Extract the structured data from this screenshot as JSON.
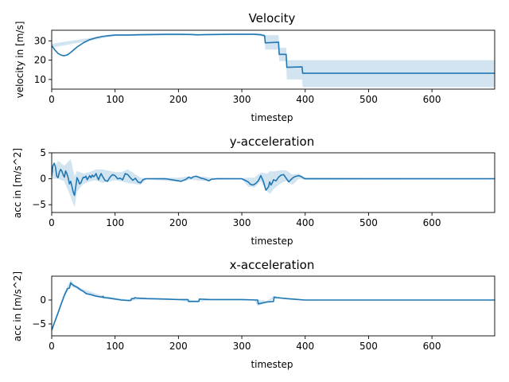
{
  "colors": {
    "line": "#1f77b4",
    "band": "#1f77b4",
    "band_opacity": 0.2
  },
  "chart_data": [
    {
      "type": "line",
      "title": "Velocity",
      "xlabel": "timestep",
      "ylabel": "velocity in [m/s]",
      "xlim": [
        0,
        699
      ],
      "ylim": [
        5,
        35.5
      ],
      "xticks": [
        0,
        100,
        200,
        300,
        400,
        500,
        600
      ],
      "yticks": [
        10,
        20,
        30
      ],
      "grid": false,
      "series": [
        {
          "x": [
            0,
            5,
            10,
            15,
            20,
            25,
            30,
            40,
            50,
            60,
            70,
            80,
            90,
            100,
            110,
            120,
            140,
            160,
            180,
            200,
            220,
            230,
            240,
            260,
            280,
            300,
            320,
            330,
            336,
            337,
            358,
            359,
            370,
            371,
            395,
            396,
            699
          ],
          "y": [
            27.5,
            25.3,
            23.5,
            22.6,
            22.3,
            22.8,
            24.0,
            26.8,
            29.0,
            30.6,
            31.6,
            32.3,
            32.7,
            33.0,
            33.0,
            33.0,
            33.2,
            33.3,
            33.4,
            33.4,
            33.3,
            33.1,
            33.2,
            33.3,
            33.4,
            33.4,
            33.4,
            33.2,
            32.6,
            29.0,
            29.3,
            23.0,
            23.0,
            16.3,
            16.5,
            13.2,
            13.2
          ],
          "band": {
            "x": [
              0,
              100,
              320,
              336,
              337,
              358,
              359,
              370,
              371,
              395,
              396,
              699
            ],
            "upper": [
              28.5,
              33.5,
              33.8,
              33.5,
              33.0,
              33.0,
              26.5,
              26.5,
              20.0,
              20.0,
              20.0,
              20.0
            ],
            "lower": [
              26.5,
              32.5,
              33.0,
              32.0,
              25.5,
              25.5,
              19.5,
              19.5,
              10.0,
              10.0,
              6.0,
              6.0
            ]
          }
        }
      ]
    },
    {
      "type": "line",
      "title": "y-acceleration",
      "xlabel": "timestep",
      "ylabel": "acc in [m/s^2]",
      "xlim": [
        0,
        699
      ],
      "ylim": [
        -6.5,
        5
      ],
      "xticks": [
        0,
        100,
        200,
        300,
        400,
        500,
        600
      ],
      "yticks": [
        -5,
        0,
        5
      ],
      "grid": false,
      "series": [
        {
          "x": [
            0,
            2,
            4,
            6,
            8,
            10,
            12,
            14,
            16,
            18,
            20,
            22,
            24,
            26,
            28,
            30,
            32,
            34,
            36,
            38,
            40,
            42,
            44,
            46,
            48,
            50,
            52,
            54,
            56,
            58,
            60,
            62,
            64,
            66,
            68,
            70,
            72,
            74,
            76,
            78,
            80,
            84,
            88,
            92,
            96,
            100,
            104,
            108,
            112,
            116,
            120,
            124,
            128,
            132,
            136,
            140,
            144,
            148,
            160,
            180,
            200,
            204,
            208,
            212,
            216,
            220,
            224,
            228,
            232,
            236,
            240,
            244,
            248,
            252,
            260,
            280,
            300,
            310,
            314,
            318,
            322,
            326,
            330,
            334,
            338,
            342,
            344,
            346,
            348,
            350,
            354,
            358,
            362,
            366,
            370,
            374,
            378,
            382,
            386,
            390,
            394,
            398,
            400,
            420,
            699
          ],
          "y": [
            0.5,
            2.5,
            3.0,
            2.2,
            0.5,
            0.2,
            1.2,
            1.8,
            1.5,
            0.8,
            0.3,
            1.5,
            1.0,
            0.2,
            -1.0,
            -0.5,
            -1.5,
            -2.6,
            -3.2,
            -1.5,
            0.2,
            -0.3,
            -1.0,
            -0.8,
            -0.2,
            0.3,
            0.2,
            0.5,
            -0.2,
            0.2,
            0.6,
            0.2,
            0.7,
            0.4,
            0.6,
            1.0,
            0.3,
            -0.2,
            0.5,
            1.0,
            0.5,
            -0.3,
            -0.5,
            0.3,
            0.8,
            0.6,
            0.0,
            0.1,
            -0.2,
            1.0,
            0.8,
            0.2,
            -0.3,
            0.1,
            -0.6,
            -0.8,
            -0.2,
            0.0,
            0.0,
            0.0,
            -0.4,
            -0.5,
            -0.3,
            -0.1,
            0.3,
            0.1,
            0.4,
            0.5,
            0.3,
            0.1,
            0.0,
            -0.2,
            -0.4,
            -0.1,
            0.0,
            0.0,
            0.0,
            -0.6,
            -1.1,
            -1.2,
            -0.9,
            -0.4,
            0.6,
            -0.5,
            -2.2,
            -1.6,
            -0.6,
            -1.2,
            -0.8,
            -0.2,
            -0.4,
            0.3,
            0.7,
            0.8,
            0.1,
            -0.6,
            -0.1,
            0.3,
            0.5,
            0.6,
            0.4,
            0.1,
            0.0,
            0.0,
            0.0
          ],
          "band": {
            "x": [
              0,
              10,
              20,
              30,
              36,
              40,
              50,
              60,
              70,
              80,
              100,
              110,
              120,
              140,
              150,
              200,
              220,
              240,
              250,
              300,
              310,
              320,
              330,
              340,
              345,
              350,
              360,
              370,
              380,
              390,
              400,
              699
            ],
            "upper": [
              1.0,
              3.5,
              2.5,
              3.8,
              0.5,
              1.5,
              1.0,
              1.3,
              1.8,
              1.8,
              1.3,
              1.3,
              1.8,
              0.2,
              0.1,
              0.2,
              0.5,
              0.4,
              0.2,
              0.1,
              0.2,
              0.2,
              1.2,
              1.0,
              1.5,
              1.4,
              1.6,
              1.6,
              0.8,
              1.0,
              0.2,
              0.1
            ],
            "lower": [
              0.0,
              0.0,
              -0.5,
              -3.5,
              -5.5,
              -2.5,
              -1.0,
              -0.5,
              -0.3,
              -0.8,
              -0.3,
              -0.5,
              -0.8,
              -1.2,
              -0.1,
              -0.6,
              -0.2,
              -0.4,
              -0.2,
              -0.1,
              -1.5,
              -1.7,
              -0.5,
              -2.5,
              -2.9,
              -2.0,
              -1.0,
              -0.4,
              -1.2,
              0.0,
              -0.2,
              -0.1
            ]
          }
        }
      ]
    },
    {
      "type": "line",
      "title": "x-acceleration",
      "xlabel": "timestep",
      "ylabel": "acc in [m/s^2]",
      "xlim": [
        0,
        699
      ],
      "ylim": [
        -7.5,
        5.0
      ],
      "xticks": [
        0,
        100,
        200,
        300,
        400,
        500,
        600
      ],
      "yticks": [
        -5,
        0
      ],
      "grid": false,
      "series": [
        {
          "x": [
            0,
            5,
            10,
            15,
            20,
            25,
            28,
            30,
            32,
            35,
            40,
            45,
            50,
            55,
            60,
            70,
            80,
            81,
            82,
            90,
            100,
            110,
            120,
            125,
            126,
            130,
            131,
            135,
            150,
            180,
            200,
            215,
            216,
            232,
            233,
            250,
            300,
            325,
            326,
            340,
            350,
            351,
            355,
            370,
            390,
            400,
            699
          ],
          "y": [
            -6.3,
            -4.5,
            -2.7,
            -0.8,
            1.0,
            2.4,
            2.5,
            3.6,
            3.3,
            3.0,
            2.7,
            2.2,
            1.8,
            1.3,
            1.2,
            0.8,
            0.6,
            0.8,
            0.5,
            0.4,
            0.2,
            0.0,
            -0.1,
            -0.1,
            0.3,
            0.3,
            0.5,
            0.4,
            0.3,
            0.2,
            0.1,
            0.1,
            -0.3,
            -0.3,
            0.2,
            0.1,
            0.1,
            0.0,
            -0.8,
            -0.4,
            -0.3,
            0.6,
            0.5,
            0.3,
            0.1,
            0.0,
            0.0
          ],
          "band": {
            "x": [
              0,
              10,
              20,
              25,
              30,
              35,
              45,
              80,
              120,
              140,
              200,
              215,
              232,
              250,
              320,
              325,
              340,
              350,
              360,
              400,
              699
            ],
            "upper": [
              -5.8,
              -2.3,
              1.5,
              3.0,
              4.2,
              3.4,
              2.5,
              0.9,
              0.1,
              0.5,
              0.2,
              0.1,
              -0.1,
              0.2,
              0.1,
              0.1,
              -0.2,
              0.9,
              0.6,
              0.1,
              0.05
            ],
            "lower": [
              -6.8,
              -3.1,
              0.5,
              1.8,
              3.0,
              2.6,
              1.9,
              0.4,
              -0.2,
              0.1,
              0.0,
              -0.4,
              -0.4,
              0.0,
              -0.1,
              -1.2,
              -0.6,
              0.3,
              0.3,
              -0.1,
              -0.05
            ]
          }
        }
      ]
    }
  ]
}
